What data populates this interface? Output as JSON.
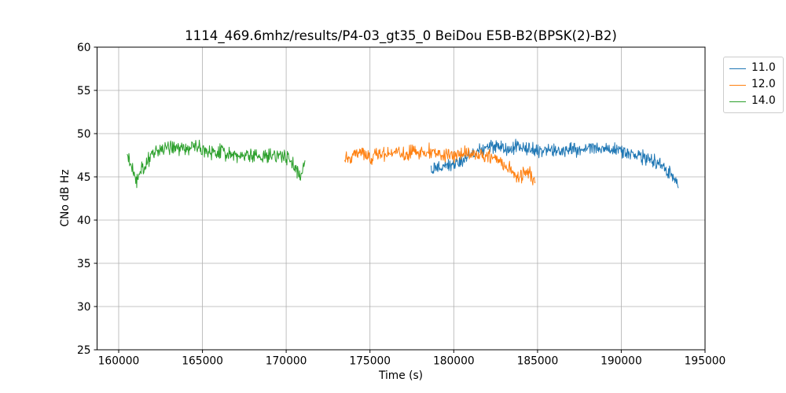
{
  "title": "1114_469.6mhz/results/P4-03_gt35_0 BeiDou E5B-B2(BPSK(2)-B2)",
  "chart_data": {
    "type": "line",
    "title": "1114_469.6mhz/results/P4-03_gt35_0 BeiDou E5B-B2(BPSK(2)-B2)",
    "xlabel": "Time (s)",
    "ylabel": "CNo dB Hz",
    "xlim": [
      158710,
      195000
    ],
    "ylim": [
      25,
      60
    ],
    "xticks": [
      160000,
      165000,
      170000,
      175000,
      180000,
      185000,
      190000,
      195000
    ],
    "yticks": [
      25,
      30,
      35,
      40,
      45,
      50,
      55,
      60
    ],
    "grid": true,
    "legend_position": "outside-top-right",
    "colors": {
      "grid": "#b0b0b0",
      "spine": "#000000",
      "legend_border": "#cccccc",
      "blue": "#1f77b4",
      "orange": "#ff7f0e",
      "green": "#2ca02c"
    },
    "series": [
      {
        "name": "11.0",
        "color": "#1f77b4",
        "seed": 11,
        "noise": 0.7,
        "step": 30,
        "keypoints": [
          [
            178650,
            45.9
          ],
          [
            178900,
            46.1
          ],
          [
            179200,
            46.1
          ],
          [
            179500,
            46.3
          ],
          [
            179800,
            46.4
          ],
          [
            180100,
            46.6
          ],
          [
            180400,
            46.9
          ],
          [
            180700,
            47.2
          ],
          [
            181000,
            47.5
          ],
          [
            181300,
            47.8
          ],
          [
            181600,
            48.1
          ],
          [
            181900,
            48.3
          ],
          [
            182200,
            48.5
          ],
          [
            182500,
            48.4
          ],
          [
            182800,
            48.4
          ],
          [
            183100,
            48.2
          ],
          [
            183400,
            48.2
          ],
          [
            183700,
            48.4
          ],
          [
            184000,
            48.3
          ],
          [
            184300,
            48.2
          ],
          [
            184600,
            48.1
          ],
          [
            184900,
            48.0
          ],
          [
            185200,
            48.1
          ],
          [
            185500,
            48.1
          ],
          [
            185800,
            48.2
          ],
          [
            186100,
            48.1
          ],
          [
            186400,
            48.0
          ],
          [
            186700,
            48.1
          ],
          [
            187000,
            48.2
          ],
          [
            187300,
            48.2
          ],
          [
            187600,
            48.3
          ],
          [
            187900,
            48.3
          ],
          [
            188200,
            48.4
          ],
          [
            188500,
            48.4
          ],
          [
            188800,
            48.3
          ],
          [
            189100,
            48.2
          ],
          [
            189400,
            48.1
          ],
          [
            189700,
            48.0
          ],
          [
            190000,
            48.0
          ],
          [
            190300,
            47.9
          ],
          [
            190600,
            47.7
          ],
          [
            190900,
            47.5
          ],
          [
            191200,
            47.3
          ],
          [
            191500,
            47.2
          ],
          [
            191800,
            47.0
          ],
          [
            192100,
            46.8
          ],
          [
            192400,
            46.4
          ],
          [
            192700,
            45.9
          ],
          [
            193000,
            45.3
          ],
          [
            193200,
            44.6
          ],
          [
            193410,
            43.7
          ]
        ]
      },
      {
        "name": "12.0",
        "color": "#ff7f0e",
        "seed": 12,
        "noise": 0.72,
        "step": 30,
        "keypoints": [
          [
            173470,
            47.0
          ],
          [
            173650,
            47.3
          ],
          [
            173900,
            47.1
          ],
          [
            174150,
            47.5
          ],
          [
            174400,
            47.9
          ],
          [
            174650,
            47.4
          ],
          [
            174900,
            47.2
          ],
          [
            175200,
            47.4
          ],
          [
            175500,
            47.5
          ],
          [
            175800,
            47.7
          ],
          [
            176100,
            47.6
          ],
          [
            176400,
            47.7
          ],
          [
            176700,
            47.8
          ],
          [
            177000,
            47.7
          ],
          [
            177300,
            47.8
          ],
          [
            177600,
            47.9
          ],
          [
            177900,
            47.9
          ],
          [
            178200,
            48.0
          ],
          [
            178500,
            48.0
          ],
          [
            178800,
            47.8
          ],
          [
            179100,
            47.7
          ],
          [
            179400,
            47.6
          ],
          [
            179700,
            47.5
          ],
          [
            180000,
            47.5
          ],
          [
            180300,
            47.6
          ],
          [
            180600,
            47.6
          ],
          [
            180900,
            47.7
          ],
          [
            181200,
            47.6
          ],
          [
            181500,
            47.5
          ],
          [
            181800,
            47.4
          ],
          [
            182100,
            47.4
          ],
          [
            182400,
            47.3
          ],
          [
            182700,
            47.0
          ],
          [
            183000,
            46.6
          ],
          [
            183300,
            46.1
          ],
          [
            183600,
            45.4
          ],
          [
            183850,
            45.0
          ],
          [
            184050,
            45.0
          ],
          [
            184250,
            45.7
          ],
          [
            184450,
            45.4
          ],
          [
            184600,
            45.1
          ],
          [
            184750,
            44.7
          ],
          [
            184870,
            44.4
          ]
        ]
      },
      {
        "name": "14.0",
        "color": "#2ca02c",
        "seed": 14,
        "noise": 0.78,
        "step": 30,
        "keypoints": [
          [
            160490,
            47.2
          ],
          [
            160650,
            46.6
          ],
          [
            160900,
            45.4
          ],
          [
            161100,
            44.7
          ],
          [
            161350,
            45.8
          ],
          [
            161600,
            46.5
          ],
          [
            161900,
            47.2
          ],
          [
            162200,
            47.9
          ],
          [
            162500,
            48.3
          ],
          [
            162800,
            48.3
          ],
          [
            163100,
            48.6
          ],
          [
            163400,
            48.3
          ],
          [
            163700,
            48.4
          ],
          [
            164000,
            48.5
          ],
          [
            164300,
            48.4
          ],
          [
            164600,
            48.5
          ],
          [
            165000,
            48.2
          ],
          [
            165300,
            48.0
          ],
          [
            165600,
            47.7
          ],
          [
            165900,
            47.9
          ],
          [
            166200,
            47.9
          ],
          [
            166500,
            47.7
          ],
          [
            166800,
            47.8
          ],
          [
            167100,
            47.4
          ],
          [
            167400,
            47.4
          ],
          [
            167700,
            47.6
          ],
          [
            168000,
            47.5
          ],
          [
            168300,
            47.2
          ],
          [
            168600,
            47.2
          ],
          [
            168900,
            47.3
          ],
          [
            169200,
            47.5
          ],
          [
            169500,
            47.4
          ],
          [
            169800,
            47.2
          ],
          [
            170100,
            47.1
          ],
          [
            170400,
            46.5
          ],
          [
            170650,
            45.3
          ],
          [
            170820,
            44.9
          ],
          [
            171000,
            46.3
          ],
          [
            171120,
            46.9
          ]
        ]
      }
    ],
    "draw_order": [
      "11.0",
      "12.0",
      "14.0"
    ],
    "legend_entries": [
      "11.0",
      "12.0",
      "14.0"
    ]
  }
}
